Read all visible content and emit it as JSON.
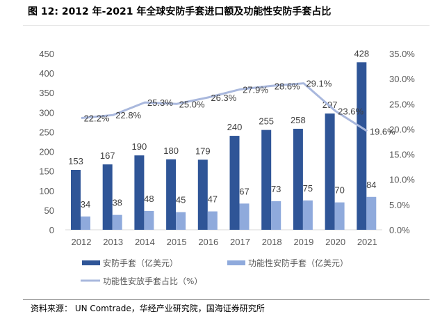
{
  "title": "图 12: 2012 年-2021 年全球安防手套进口额及功能性安防手套占比",
  "source": "资料来源：  UN Comtrade，华经产业研究院，国海证券研究所",
  "chart_data": {
    "type": "bar+line",
    "categories": [
      "2012",
      "2013",
      "2014",
      "2015",
      "2016",
      "2017",
      "2018",
      "2019",
      "2020",
      "2021"
    ],
    "series": [
      {
        "name": "安防手套（亿美元）",
        "type": "bar",
        "axis": "left",
        "color": "#2F5597",
        "values": [
          153,
          167,
          190,
          180,
          179,
          240,
          255,
          258,
          297,
          428
        ]
      },
      {
        "name": "功能性安防手套（亿美元）",
        "type": "bar",
        "axis": "left",
        "color": "#8FAADC",
        "values": [
          34,
          38,
          48,
          45,
          47,
          67,
          73,
          75,
          70,
          84
        ]
      },
      {
        "name": "功能性安放手套占比（%）",
        "type": "line",
        "axis": "right",
        "color": "#A9B8DD",
        "values": [
          22.2,
          22.8,
          25.3,
          25.0,
          26.3,
          27.9,
          28.6,
          29.1,
          23.6,
          19.6
        ]
      }
    ],
    "left_axis": {
      "ylim": [
        0,
        450
      ],
      "ticks": [
        "0",
        "50",
        "100",
        "150",
        "200",
        "250",
        "300",
        "350",
        "400",
        "450"
      ]
    },
    "right_axis": {
      "ylim": [
        0,
        35
      ],
      "ticks": [
        "0.0%",
        "5.0%",
        "10.0%",
        "15.0%",
        "20.0%",
        "25.0%",
        "30.0%",
        "35.0%"
      ]
    },
    "grid": false,
    "legend": "bottom"
  }
}
